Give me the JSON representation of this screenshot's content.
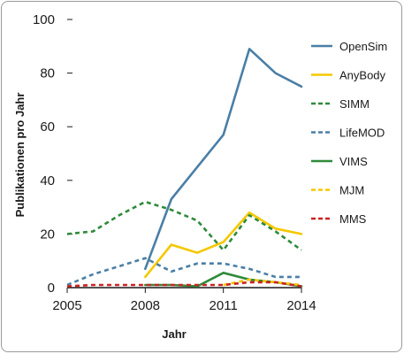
{
  "chart_data": {
    "type": "line",
    "xlabel": "Jahr",
    "ylabel": "Publikationen pro Jahr",
    "xlim": [
      2005,
      2014
    ],
    "ylim": [
      0,
      100
    ],
    "x_ticks": [
      "2005",
      "2008",
      "2011",
      "2014"
    ],
    "y_ticks": [
      "100",
      "80",
      "60",
      "40",
      "20",
      "0"
    ],
    "legend_position": "right",
    "grid": false,
    "series": [
      {
        "name": "OpenSim",
        "color": "#4a7fa6",
        "style": "solid",
        "points": [
          [
            2008,
            7
          ],
          [
            2009,
            33
          ],
          [
            2010,
            45
          ],
          [
            2011,
            57
          ],
          [
            2012,
            89
          ],
          [
            2013,
            80
          ],
          [
            2014,
            75
          ]
        ]
      },
      {
        "name": "AnyBody",
        "color": "#f5c800",
        "style": "solid",
        "points": [
          [
            2008,
            4
          ],
          [
            2009,
            16
          ],
          [
            2010,
            13
          ],
          [
            2011,
            17
          ],
          [
            2012,
            28
          ],
          [
            2013,
            22
          ],
          [
            2014,
            20
          ]
        ]
      },
      {
        "name": "SIMM",
        "color": "#2e8b3a",
        "style": "dashed",
        "points": [
          [
            2005,
            20
          ],
          [
            2006,
            21
          ],
          [
            2007,
            27
          ],
          [
            2008,
            32
          ],
          [
            2009,
            29
          ],
          [
            2010,
            25
          ],
          [
            2011,
            14
          ],
          [
            2012,
            27
          ],
          [
            2013,
            21
          ],
          [
            2014,
            14
          ]
        ]
      },
      {
        "name": "LifeMOD",
        "color": "#4a7fa6",
        "style": "dashed",
        "points": [
          [
            2005,
            1
          ],
          [
            2006,
            5
          ],
          [
            2007,
            8
          ],
          [
            2008,
            11
          ],
          [
            2009,
            6
          ],
          [
            2010,
            9
          ],
          [
            2011,
            9
          ],
          [
            2012,
            7
          ],
          [
            2013,
            4
          ],
          [
            2014,
            4
          ]
        ]
      },
      {
        "name": "VIMS",
        "color": "#2e8b3a",
        "style": "solid",
        "points": [
          [
            2008,
            1
          ],
          [
            2009,
            1
          ],
          [
            2010,
            0.5
          ],
          [
            2011,
            5.5
          ],
          [
            2012,
            3
          ],
          [
            2013,
            2
          ],
          [
            2014,
            0.5
          ]
        ]
      },
      {
        "name": "MJM",
        "color": "#f5c800",
        "style": "dashed",
        "points": [
          [
            2011,
            1
          ],
          [
            2012,
            3
          ],
          [
            2013,
            2
          ],
          [
            2014,
            1
          ]
        ]
      },
      {
        "name": "MMS",
        "color": "#cc2222",
        "style": "dashed",
        "points": [
          [
            2005,
            0.5
          ],
          [
            2006,
            1
          ],
          [
            2007,
            1
          ],
          [
            2008,
            1
          ],
          [
            2009,
            1
          ],
          [
            2010,
            1
          ],
          [
            2011,
            1
          ],
          [
            2012,
            2
          ],
          [
            2013,
            2
          ],
          [
            2014,
            0.5
          ]
        ]
      }
    ]
  }
}
